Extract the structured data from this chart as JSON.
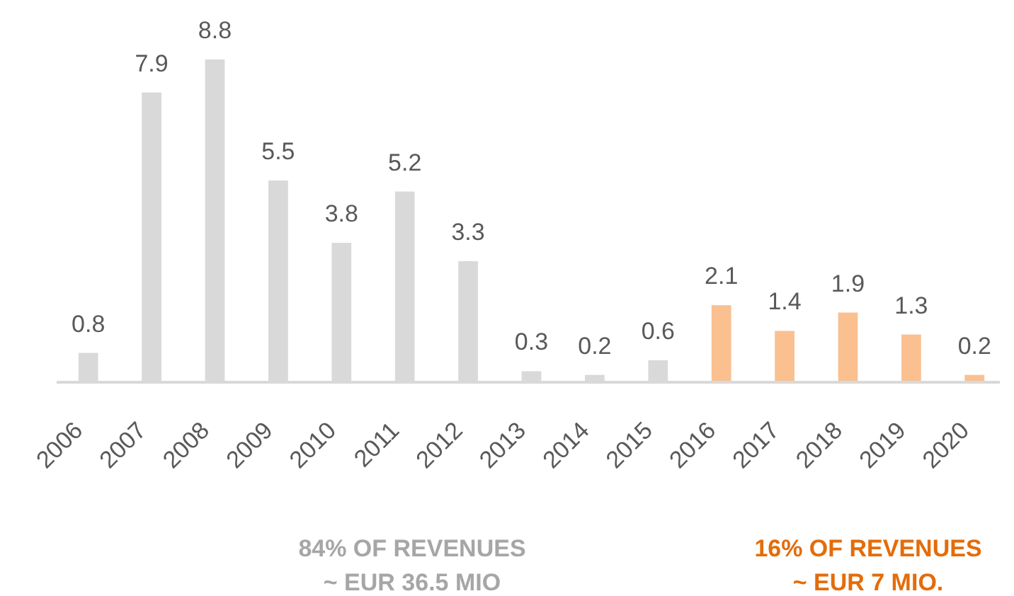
{
  "chart_data": {
    "type": "bar",
    "categories": [
      "2006",
      "2007",
      "2008",
      "2009",
      "2010",
      "2011",
      "2012",
      "2013",
      "2014",
      "2015",
      "2016",
      "2017",
      "2018",
      "2019",
      "2020"
    ],
    "values": [
      0.8,
      7.9,
      8.8,
      5.5,
      3.8,
      5.2,
      3.3,
      0.3,
      0.2,
      0.6,
      2.1,
      1.4,
      1.9,
      1.3,
      0.2
    ],
    "colors": [
      "#d9d9d9",
      "#d9d9d9",
      "#d9d9d9",
      "#d9d9d9",
      "#d9d9d9",
      "#d9d9d9",
      "#d9d9d9",
      "#d9d9d9",
      "#d9d9d9",
      "#d9d9d9",
      "#fac090",
      "#fac090",
      "#fac090",
      "#fac090",
      "#fac090"
    ],
    "data_labels": true,
    "tick_labels": "x",
    "annotations": [
      "84% OF REVENUES\n~ EUR 36.5 MIO",
      "16% OF REVENUES\n~ EUR 7 MIO."
    ]
  }
}
